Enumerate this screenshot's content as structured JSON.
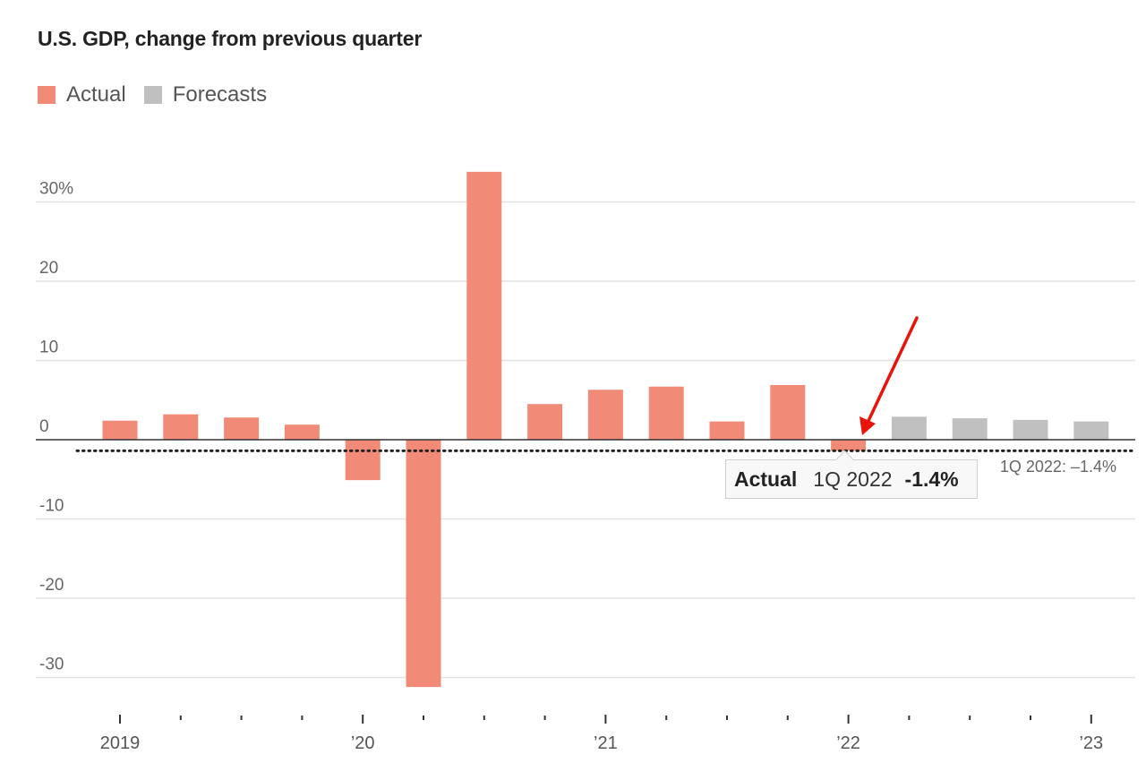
{
  "title": "U.S. GDP, change from previous quarter",
  "legend": [
    {
      "label": "Actual",
      "color": "#f28a78"
    },
    {
      "label": "Forecasts",
      "color": "#c0c0c0"
    }
  ],
  "tooltip": {
    "label": "Actual",
    "period": "1Q 2022",
    "value": "-1.4%"
  },
  "reference_line_label": "1Q 2022: –1.4%",
  "chart_data": {
    "type": "bar",
    "title": "U.S. GDP, change from previous quarter",
    "xlabel": "",
    "ylabel": "",
    "ylim": [
      -35,
      35
    ],
    "y_ticks": [
      30,
      20,
      10,
      0,
      -10,
      -20,
      -30
    ],
    "y_tick_labels": [
      "30%",
      "20",
      "10",
      "0",
      "-10",
      "-20",
      "-30"
    ],
    "x_ticks": [
      "2019",
      "’20",
      "’21",
      "’22",
      "’23"
    ],
    "grid": true,
    "reference_value": -1.4,
    "categories": [
      "1Q 2019",
      "2Q 2019",
      "3Q 2019",
      "4Q 2019",
      "1Q 2020",
      "2Q 2020",
      "3Q 2020",
      "4Q 2020",
      "1Q 2021",
      "2Q 2021",
      "3Q 2021",
      "4Q 2021",
      "1Q 2022",
      "2Q 2022",
      "3Q 2022",
      "4Q 2022",
      "1Q 2023"
    ],
    "series": [
      {
        "name": "Actual",
        "color": "#f28a78",
        "values": [
          2.4,
          3.2,
          2.8,
          1.9,
          -5.1,
          -31.2,
          33.8,
          4.5,
          6.3,
          6.7,
          2.3,
          6.9,
          -1.4,
          null,
          null,
          null,
          null
        ]
      },
      {
        "name": "Forecasts",
        "color": "#c0c0c0",
        "values": [
          null,
          null,
          null,
          null,
          null,
          null,
          null,
          null,
          null,
          null,
          null,
          null,
          null,
          2.9,
          2.7,
          2.5,
          2.3
        ]
      }
    ]
  }
}
